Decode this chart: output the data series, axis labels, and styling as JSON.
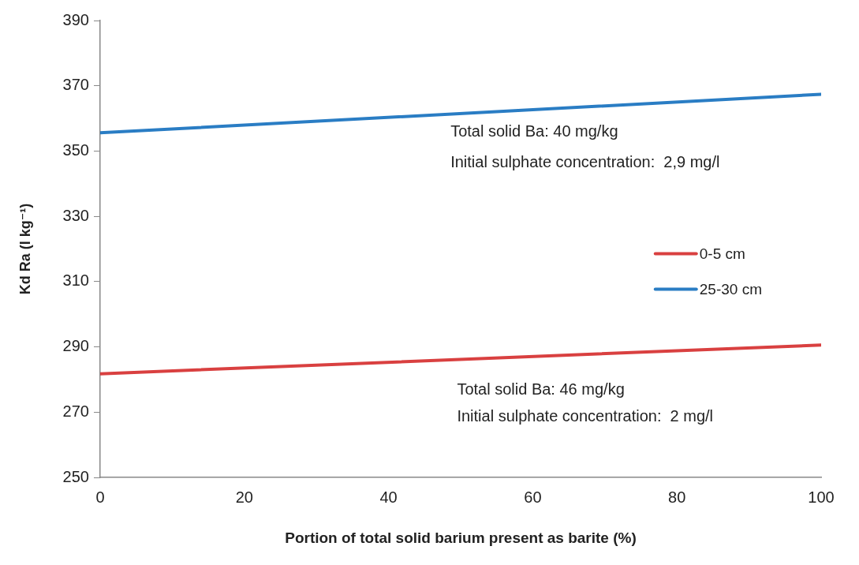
{
  "chart_data": {
    "type": "line",
    "xlabel": "Portion of total solid barium present as barite (%)",
    "ylabel": "Kd Ra (l kg⁻¹)",
    "x": [
      0,
      100
    ],
    "series": [
      {
        "name": "0-5 cm",
        "color": "#d94040",
        "values": [
          281.8,
          290.6
        ]
      },
      {
        "name": "25-30 cm",
        "color": "#2a7dc4",
        "values": [
          355.6,
          367.4
        ]
      }
    ],
    "xlim": [
      0,
      100
    ],
    "xticks": [
      0,
      20,
      40,
      60,
      80,
      100
    ],
    "ylim": [
      250,
      390
    ],
    "yticks": [
      250,
      270,
      290,
      310,
      330,
      350,
      370,
      390
    ],
    "annotations": [
      "Total solid Ba: 40 mg/kg",
      "Initial sulphate concentration:  2,9 mg/l",
      "Total solid Ba: 46 mg/kg",
      "Initial sulphate concentration:  2 mg/l"
    ],
    "grid": false,
    "legend": "right",
    "marker": "none",
    "line_style": "solid"
  }
}
